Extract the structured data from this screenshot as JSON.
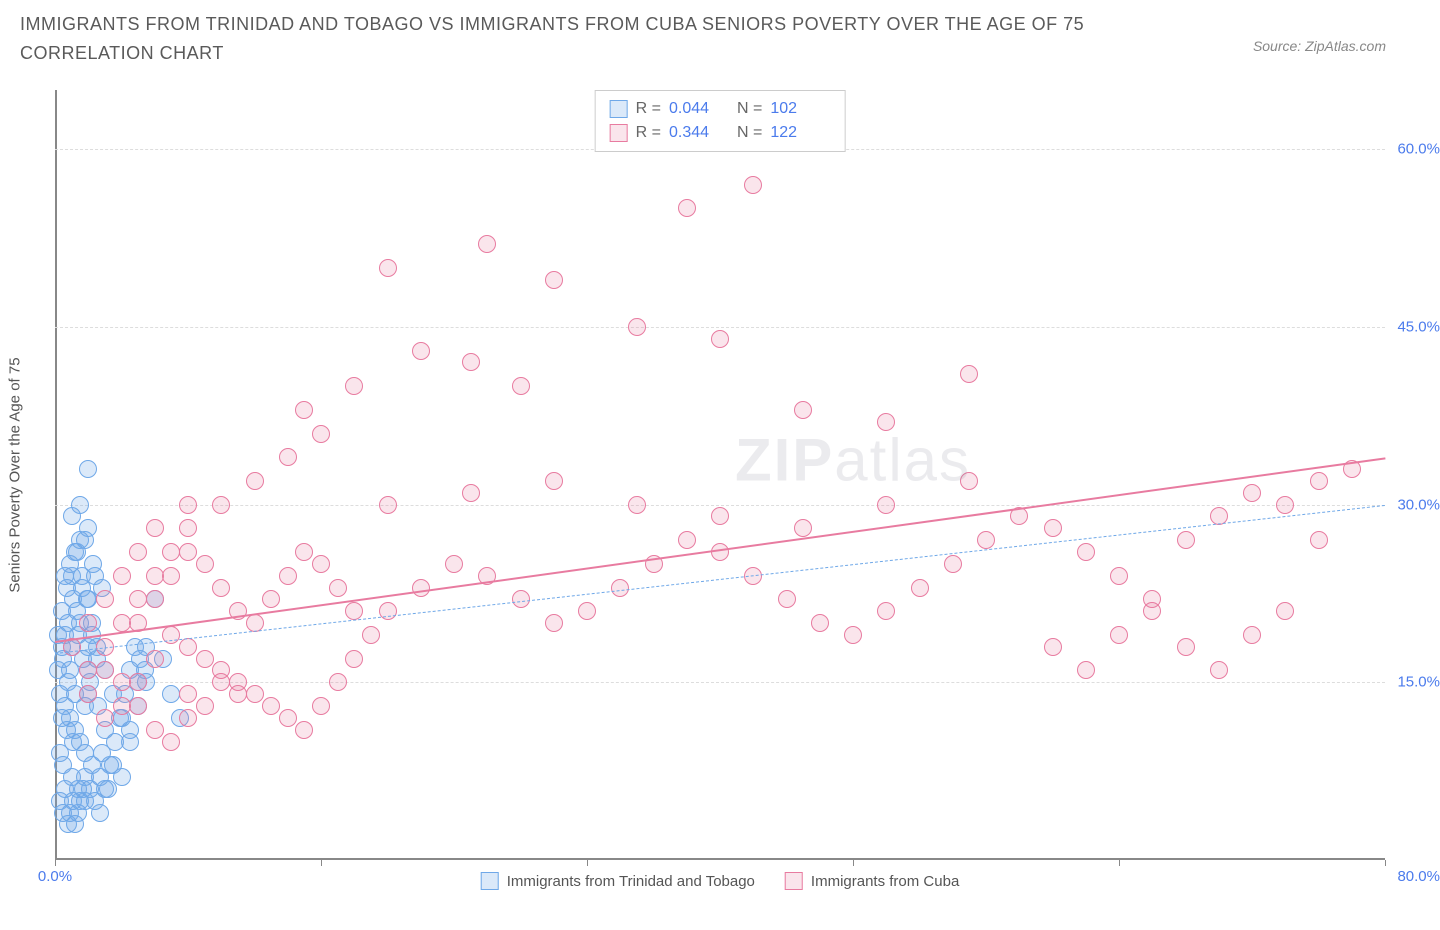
{
  "title": "IMMIGRANTS FROM TRINIDAD AND TOBAGO VS IMMIGRANTS FROM CUBA SENIORS POVERTY OVER THE AGE OF 75 CORRELATION CHART",
  "source": "Source: ZipAtlas.com",
  "watermark_a": "ZIP",
  "watermark_b": "atlas",
  "yaxis_label": "Seniors Poverty Over the Age of 75",
  "chart": {
    "type": "scatter",
    "xlim": [
      0,
      80
    ],
    "ylim": [
      0,
      65
    ],
    "yticks": [
      15,
      30,
      45,
      60
    ],
    "ytick_labels": [
      "15.0%",
      "30.0%",
      "45.0%",
      "60.0%"
    ],
    "xticks": [
      0,
      16,
      32,
      48,
      64,
      80
    ],
    "xtick_labels": [
      "0.0%",
      "",
      "",
      "",
      "",
      "80.0%"
    ],
    "grid_color": "#dddddd",
    "axis_color": "#888888",
    "background_color": "#ffffff",
    "marker_radius": 9,
    "marker_stroke_width": 1.5,
    "series": [
      {
        "name": "Immigrants from Trinidad and Tobago",
        "color_stroke": "#6fa8e8",
        "color_fill": "rgba(111,168,232,0.25)",
        "R": "0.044",
        "N": "102",
        "trend": {
          "x1": 0,
          "y1": 17.5,
          "x2": 80,
          "y2": 30,
          "dash": "5,4",
          "width": 1.5
        },
        "points": [
          [
            0.5,
            17
          ],
          [
            0.8,
            15
          ],
          [
            1.0,
            18
          ],
          [
            1.2,
            14
          ],
          [
            0.6,
            19
          ],
          [
            0.9,
            16
          ],
          [
            1.5,
            20
          ],
          [
            1.8,
            13
          ],
          [
            2.0,
            22
          ],
          [
            0.4,
            12
          ],
          [
            0.7,
            11
          ],
          [
            1.1,
            10
          ],
          [
            1.3,
            21
          ],
          [
            1.6,
            23
          ],
          [
            2.2,
            19
          ],
          [
            2.5,
            17
          ],
          [
            0.3,
            9
          ],
          [
            0.5,
            8
          ],
          [
            1.0,
            7
          ],
          [
            1.4,
            6
          ],
          [
            1.8,
            5
          ],
          [
            0.6,
            24
          ],
          [
            0.9,
            25
          ],
          [
            1.2,
            26
          ],
          [
            1.5,
            27
          ],
          [
            2.0,
            28
          ],
          [
            2.4,
            24
          ],
          [
            0.2,
            16
          ],
          [
            0.4,
            18
          ],
          [
            0.8,
            20
          ],
          [
            1.1,
            22
          ],
          [
            1.4,
            19
          ],
          [
            1.7,
            17
          ],
          [
            2.1,
            15
          ],
          [
            2.6,
            13
          ],
          [
            3.0,
            11
          ],
          [
            0.3,
            14
          ],
          [
            0.6,
            13
          ],
          [
            0.9,
            12
          ],
          [
            1.2,
            11
          ],
          [
            1.5,
            10
          ],
          [
            1.8,
            9
          ],
          [
            2.2,
            8
          ],
          [
            2.7,
            7
          ],
          [
            3.2,
            6
          ],
          [
            0.5,
            4
          ],
          [
            0.8,
            3
          ],
          [
            1.1,
            5
          ],
          [
            1.4,
            4
          ],
          [
            1.7,
            6
          ],
          [
            2.8,
            9
          ],
          [
            3.5,
            8
          ],
          [
            4.0,
            7
          ],
          [
            4.5,
            10
          ],
          [
            5.0,
            15
          ],
          [
            5.5,
            18
          ],
          [
            6.0,
            22
          ],
          [
            1.0,
            29
          ],
          [
            1.5,
            30
          ],
          [
            2.0,
            33
          ],
          [
            1.8,
            27
          ],
          [
            2.3,
            25
          ],
          [
            2.8,
            23
          ],
          [
            0.2,
            19
          ],
          [
            0.4,
            21
          ],
          [
            0.7,
            23
          ],
          [
            1.0,
            24
          ],
          [
            1.3,
            26
          ],
          [
            1.6,
            24
          ],
          [
            1.9,
            22
          ],
          [
            2.2,
            20
          ],
          [
            2.5,
            18
          ],
          [
            3.0,
            16
          ],
          [
            3.5,
            14
          ],
          [
            4.0,
            12
          ],
          [
            4.5,
            11
          ],
          [
            5.0,
            13
          ],
          [
            5.5,
            15
          ],
          [
            6.5,
            17
          ],
          [
            7.0,
            14
          ],
          [
            7.5,
            12
          ],
          [
            0.3,
            5
          ],
          [
            0.6,
            6
          ],
          [
            0.9,
            4
          ],
          [
            1.2,
            3
          ],
          [
            1.5,
            5
          ],
          [
            1.8,
            7
          ],
          [
            2.1,
            6
          ],
          [
            2.4,
            5
          ],
          [
            2.7,
            4
          ],
          [
            3.0,
            6
          ],
          [
            3.3,
            8
          ],
          [
            3.6,
            10
          ],
          [
            3.9,
            12
          ],
          [
            4.2,
            14
          ],
          [
            4.5,
            16
          ],
          [
            4.8,
            18
          ],
          [
            5.1,
            17
          ],
          [
            5.4,
            16
          ],
          [
            2.0,
            16
          ],
          [
            2.0,
            18
          ],
          [
            2.0,
            14
          ]
        ]
      },
      {
        "name": "Immigrants from Cuba",
        "color_stroke": "#e87ba0",
        "color_fill": "rgba(232,123,160,0.20)",
        "R": "0.344",
        "N": "122",
        "trend": {
          "x1": 0,
          "y1": 18.5,
          "x2": 80,
          "y2": 34,
          "dash": "none",
          "width": 2.5
        },
        "points": [
          [
            2,
            14
          ],
          [
            3,
            16
          ],
          [
            4,
            15
          ],
          [
            5,
            13
          ],
          [
            6,
            17
          ],
          [
            7,
            19
          ],
          [
            8,
            14
          ],
          [
            3,
            12
          ],
          [
            4,
            13
          ],
          [
            5,
            15
          ],
          [
            6,
            11
          ],
          [
            7,
            10
          ],
          [
            8,
            12
          ],
          [
            9,
            13
          ],
          [
            10,
            15
          ],
          [
            11,
            14
          ],
          [
            5,
            20
          ],
          [
            6,
            22
          ],
          [
            7,
            24
          ],
          [
            8,
            26
          ],
          [
            9,
            25
          ],
          [
            10,
            23
          ],
          [
            11,
            21
          ],
          [
            12,
            20
          ],
          [
            13,
            22
          ],
          [
            14,
            24
          ],
          [
            15,
            26
          ],
          [
            16,
            25
          ],
          [
            17,
            23
          ],
          [
            18,
            21
          ],
          [
            8,
            18
          ],
          [
            9,
            17
          ],
          [
            10,
            16
          ],
          [
            11,
            15
          ],
          [
            12,
            14
          ],
          [
            13,
            13
          ],
          [
            14,
            12
          ],
          [
            15,
            11
          ],
          [
            16,
            13
          ],
          [
            17,
            15
          ],
          [
            18,
            17
          ],
          [
            19,
            19
          ],
          [
            20,
            21
          ],
          [
            22,
            23
          ],
          [
            24,
            25
          ],
          [
            26,
            24
          ],
          [
            28,
            22
          ],
          [
            30,
            20
          ],
          [
            32,
            21
          ],
          [
            34,
            23
          ],
          [
            36,
            25
          ],
          [
            38,
            27
          ],
          [
            40,
            26
          ],
          [
            42,
            24
          ],
          [
            44,
            22
          ],
          [
            46,
            20
          ],
          [
            48,
            19
          ],
          [
            50,
            21
          ],
          [
            52,
            23
          ],
          [
            54,
            25
          ],
          [
            56,
            27
          ],
          [
            58,
            29
          ],
          [
            60,
            28
          ],
          [
            62,
            26
          ],
          [
            64,
            24
          ],
          [
            66,
            22
          ],
          [
            68,
            27
          ],
          [
            70,
            29
          ],
          [
            72,
            31
          ],
          [
            74,
            30
          ],
          [
            76,
            32
          ],
          [
            78,
            33
          ],
          [
            15,
            38
          ],
          [
            18,
            40
          ],
          [
            22,
            43
          ],
          [
            25,
            42
          ],
          [
            28,
            40
          ],
          [
            20,
            50
          ],
          [
            26,
            52
          ],
          [
            30,
            49
          ],
          [
            35,
            45
          ],
          [
            40,
            44
          ],
          [
            45,
            38
          ],
          [
            50,
            37
          ],
          [
            55,
            41
          ],
          [
            38,
            55
          ],
          [
            42,
            57
          ],
          [
            20,
            30
          ],
          [
            25,
            31
          ],
          [
            30,
            32
          ],
          [
            35,
            30
          ],
          [
            40,
            29
          ],
          [
            45,
            28
          ],
          [
            50,
            30
          ],
          [
            55,
            32
          ],
          [
            60,
            18
          ],
          [
            62,
            16
          ],
          [
            64,
            19
          ],
          [
            66,
            21
          ],
          [
            68,
            18
          ],
          [
            70,
            16
          ],
          [
            72,
            19
          ],
          [
            74,
            21
          ],
          [
            76,
            27
          ],
          [
            10,
            30
          ],
          [
            12,
            32
          ],
          [
            14,
            34
          ],
          [
            16,
            36
          ],
          [
            6,
            28
          ],
          [
            8,
            30
          ],
          [
            4,
            24
          ],
          [
            5,
            26
          ],
          [
            3,
            22
          ],
          [
            2,
            20
          ],
          [
            1,
            18
          ],
          [
            2,
            16
          ],
          [
            3,
            18
          ],
          [
            4,
            20
          ],
          [
            5,
            22
          ],
          [
            6,
            24
          ],
          [
            7,
            26
          ],
          [
            8,
            28
          ]
        ]
      }
    ]
  },
  "legend_labels": {
    "R": "R =",
    "N": "N ="
  }
}
